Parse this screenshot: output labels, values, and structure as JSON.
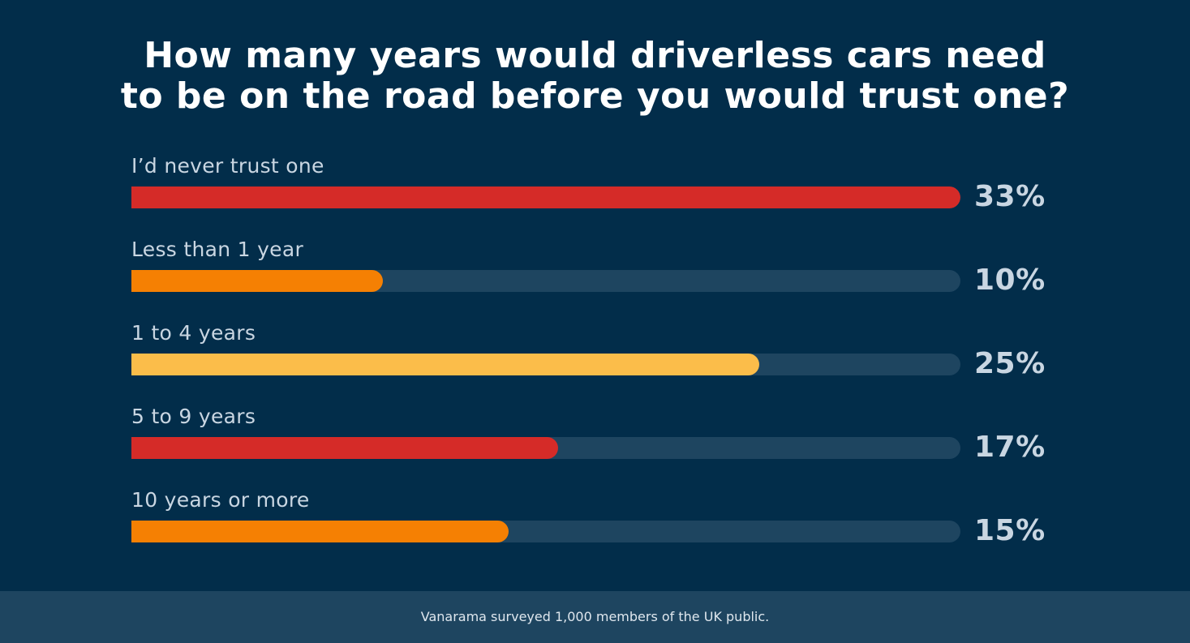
{
  "colors": {
    "background": "#022d4a",
    "track": "#1e4560",
    "footer_background": "#1e4560",
    "title_text": "#ffffff",
    "label_text": "#c9d6e2"
  },
  "chart_data": {
    "type": "bar",
    "orientation": "horizontal",
    "title_lines": [
      "How many years would driverless cars need",
      "to be on the road before you would trust one?"
    ],
    "categories": [
      "I’d never trust one",
      "Less than 1 year",
      "1 to 4 years",
      "5 to 9 years",
      "10 years or more"
    ],
    "values": [
      33,
      10,
      25,
      17,
      15
    ],
    "value_labels": [
      "33%",
      "10%",
      "25%",
      "17%",
      "15%"
    ],
    "bar_colors": [
      "#d52b28",
      "#f58003",
      "#fbbd4a",
      "#d52b28",
      "#f58003"
    ],
    "xlim": [
      0,
      33
    ],
    "grid": false,
    "legend": "none"
  },
  "footer": {
    "note": "Vanarama surveyed 1,000 members of the UK public."
  }
}
